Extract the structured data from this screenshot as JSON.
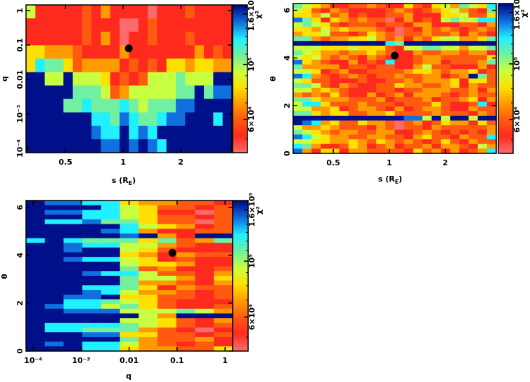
{
  "colorbar": {
    "label": "χ²",
    "scale": "log",
    "range": [
      44000,
      174000
    ],
    "ticks": [
      {
        "value": 60000,
        "label": "6×10⁴"
      },
      {
        "value": 100000,
        "label": "10⁵"
      },
      {
        "value": 160000,
        "label": "1.6×10⁵"
      }
    ],
    "level_colors": [
      "#ff6a6a",
      "#ff2a1e",
      "#ff5a10",
      "#ff9a00",
      "#ffe000",
      "#c8ff40",
      "#70f0a0",
      "#20f0ff",
      "#1070e0",
      "#00108a"
    ]
  },
  "chart_data": [
    {
      "type": "heatmap",
      "name": "s-q",
      "xlabel": "s (R",
      "xlabel_sub": "E",
      "xlabel_tail": ")",
      "ylabel": "q",
      "x_scale": "log",
      "y_scale": "log",
      "x_extent": [
        0.311,
        3.7
      ],
      "y_extent": [
        7.5e-05,
        1.46
      ],
      "xticks": [
        {
          "value": 0.5,
          "label": "0.5"
        },
        {
          "value": 1,
          "label": "1"
        },
        {
          "value": 2,
          "label": "2"
        }
      ],
      "yticks": [
        {
          "value": 1,
          "label": "1"
        },
        {
          "value": 0.1,
          "label": "0.1"
        },
        {
          "value": 0.01,
          "label": "0.01"
        },
        {
          "value": 0.001,
          "label": "10⁻³"
        },
        {
          "value": 0.0001,
          "label": "10⁻⁴"
        }
      ],
      "best_fit": {
        "x": 1.07,
        "y": 0.08
      },
      "rows_top_to_bottom": [
        "5111112131111011121111",
        "1111112111001211111111",
        "1111112131011211121111",
        "4433321111311111113121",
        "4766423333121214434433",
        "9955955541212555655599",
        "9999966652355555669688",
        "9999667666765666889999",
        "9999999776876678899979",
        "9999999877978799999999",
        "9999999988989879999999"
      ]
    },
    {
      "type": "heatmap",
      "name": "s-theta",
      "xlabel": "s (R",
      "xlabel_sub": "E",
      "xlabel_tail": ")",
      "ylabel": "θ",
      "x_scale": "log",
      "y_scale": "linear",
      "x_extent": [
        0.304,
        3.76
      ],
      "y_extent": [
        0,
        6.283
      ],
      "xticks": [
        {
          "value": 0.5,
          "label": "0.5"
        },
        {
          "value": 1,
          "label": "1"
        },
        {
          "value": 2,
          "label": "2"
        }
      ],
      "yticks": [
        {
          "value": 0,
          "label": "0"
        },
        {
          "value": 2,
          "label": "2"
        },
        {
          "value": 4,
          "label": "4"
        },
        {
          "value": 6,
          "label": "6"
        }
      ],
      "best_fit": {
        "x": 1.07,
        "y": 4.1
      },
      "rows_top_to_bottom": [
        "6543112232114214536547",
        "5421321111232123453216",
        "4435231211223111445224",
        "8641432322013121565577",
        "5654212221221331112213",
        "4435343332102132321232",
        "3445221243202232231321",
        "6632334453231324553346",
        "9999999999769999999999",
        "5554445444215566553556",
        "6543323343211322332331",
        "5453232132111233222224",
        "8432113121711233122236",
        "6333312212211352211131",
        "5541231122223443233412",
        "8732123212232233123962",
        "5422111211223233341442",
        "6652132112243322341322",
        "5534321112212233322313",
        "3232421131231333212322",
        "6643332223122231223413",
        "5774222322212224211271",
        "5533412332131233211322",
        "6643442233422223222132",
        "9999999999998859599599",
        "9873422433202312433142",
        "5334322213202213222223",
        "6543233223311232121213",
        "8754332233221342213227",
        "5544334324323212421322",
        "7631124312312231332153",
        "8314413322221423131237"
      ]
    },
    {
      "type": "heatmap",
      "name": "q-theta",
      "xlabel": "q",
      "xlabel_sub": "",
      "xlabel_tail": "",
      "ylabel": "θ",
      "x_scale": "log",
      "y_scale": "linear",
      "x_extent": [
        7.1e-05,
        1.44
      ],
      "y_extent": [
        0,
        6.283
      ],
      "xticks": [
        {
          "value": 0.0001,
          "label": "10⁻⁴"
        },
        {
          "value": 0.001,
          "label": "10⁻³"
        },
        {
          "value": 0.01,
          "label": "0.01"
        },
        {
          "value": 0.1,
          "label": "0.1"
        },
        {
          "value": 1,
          "label": "1"
        }
      ],
      "yticks": [
        {
          "value": 0,
          "label": "0"
        },
        {
          "value": 2,
          "label": "2"
        },
        {
          "value": 4,
          "label": "4"
        },
        {
          "value": 6,
          "label": "6"
        }
      ],
      "best_fit": {
        "x": 0.08,
        "y": 4.1
      },
      "rows_top_to_bottom": [
        "98877433221",
        "99997542212",
        "98877541102",
        "99977542212",
        "97786642202",
        "99999754312",
        "99998731122",
        "99999893199",
        "79766646236",
        "99877553211",
        "99899542111",
        "99999431322",
        "99877541211",
        "99999544311",
        "99999623112",
        "99987752213",
        "99999655314",
        "99999633213",
        "99977641322",
        "99987533212",
        "99889442212",
        "99776542111",
        "98775642112",
        "99888555653",
        "99999953999",
        "99999554213",
        "97777654212",
        "97766632101",
        "99988442212",
        "99999632231",
        "98977532121",
        "99977433224"
      ]
    }
  ]
}
